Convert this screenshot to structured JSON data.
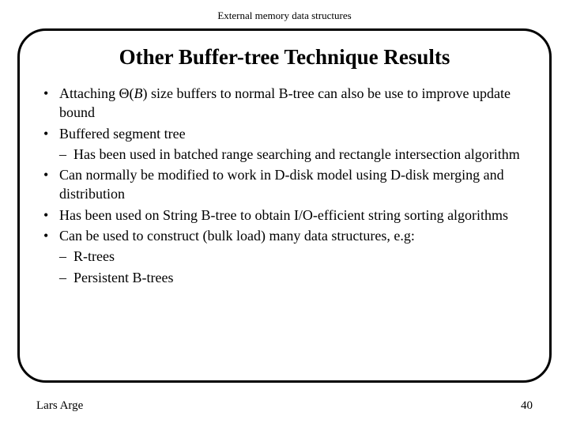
{
  "header": "External memory data structures",
  "title": "Other Buffer-tree Technique Results",
  "bullets": [
    {
      "pre": "Attaching Θ(",
      "italic": "B",
      "post": ") size buffers to normal B-tree can also be use to improve update bound"
    },
    {
      "text": "Buffered segment tree",
      "subs": [
        {
          "text": "Has been used in batched range searching and rectangle intersection algorithm"
        }
      ]
    },
    {
      "text": "Can normally be modified to work in D-disk model using D-disk merging and distribution"
    },
    {
      "text": "Has been used on String B-tree to obtain I/O-efficient string sorting algorithms"
    },
    {
      "text": "Can be used to construct (bulk load) many data structures, e.g:",
      "subs": [
        {
          "text": "R-trees"
        },
        {
          "text": "Persistent B-trees"
        }
      ]
    }
  ],
  "footer": {
    "author": "Lars Arge",
    "page": "40"
  },
  "style": {
    "border_color": "#000000",
    "background": "#ffffff",
    "text_color": "#000000",
    "title_fontsize": 27,
    "body_fontsize": 18,
    "header_fontsize": 13,
    "footer_fontsize": 15,
    "border_radius": 36,
    "border_width": 3
  }
}
